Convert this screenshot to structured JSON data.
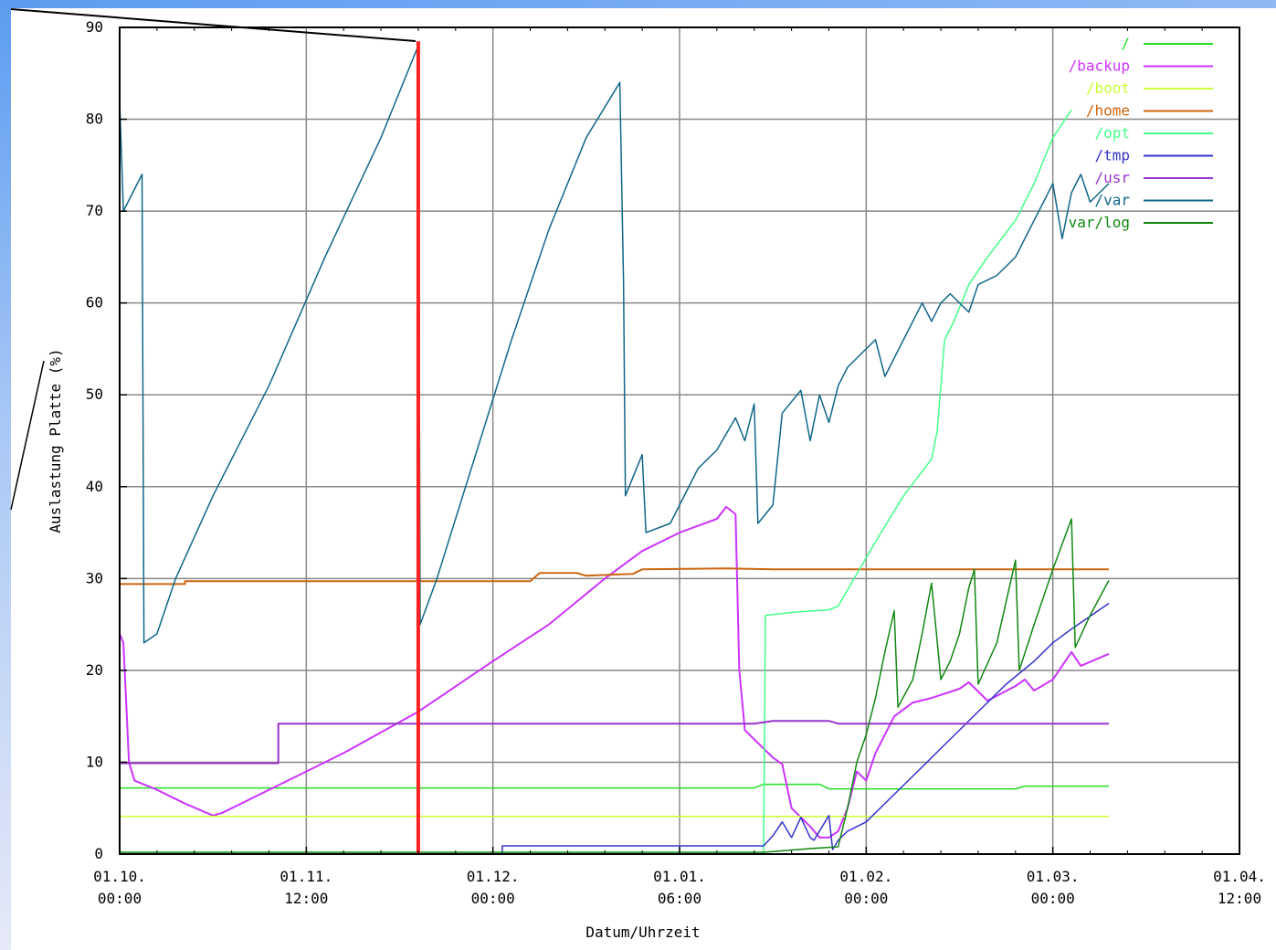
{
  "chart_data": {
    "type": "line",
    "title": "",
    "xlabel": "Datum/Uhrzeit",
    "ylabel": "Auslastung Platte (%)",
    "ylim": [
      0,
      90
    ],
    "xlim": [
      0,
      6
    ],
    "grid": true,
    "legend_position": "top-right",
    "x_tick_labels": [
      {
        "x": 0,
        "line1": "01.10.",
        "line2": "00:00"
      },
      {
        "x": 1,
        "line1": "01.11.",
        "line2": "12:00"
      },
      {
        "x": 2,
        "line1": "01.12.",
        "line2": "00:00"
      },
      {
        "x": 3,
        "line1": "01.01.",
        "line2": "06:00"
      },
      {
        "x": 4,
        "line1": "01.02.",
        "line2": "00:00"
      },
      {
        "x": 5,
        "line1": "01.03.",
        "line2": "00:00"
      },
      {
        "x": 6,
        "line1": "01.04.",
        "line2": "12:00"
      }
    ],
    "y_ticks": [
      0,
      10,
      20,
      30,
      40,
      50,
      60,
      70,
      80,
      90
    ],
    "series": [
      {
        "name": "/",
        "color": "#22dd22",
        "width": 1.5,
        "points": [
          [
            0,
            7.2
          ],
          [
            3.4,
            7.2
          ],
          [
            3.45,
            7.6
          ],
          [
            3.75,
            7.6
          ],
          [
            3.8,
            7.1
          ],
          [
            4.8,
            7.1
          ],
          [
            4.85,
            7.4
          ],
          [
            5.3,
            7.4
          ]
        ]
      },
      {
        "name": "/backup",
        "color": "#cc33ff",
        "width": 2,
        "points": [
          [
            0,
            24
          ],
          [
            0.02,
            23
          ],
          [
            0.05,
            10
          ],
          [
            0.08,
            8
          ],
          [
            0.2,
            7
          ],
          [
            0.35,
            5.5
          ],
          [
            0.5,
            4.2
          ],
          [
            0.55,
            4.5
          ],
          [
            0.9,
            8
          ],
          [
            1.2,
            11
          ],
          [
            1.6,
            15.5
          ],
          [
            2.0,
            21
          ],
          [
            2.3,
            25
          ],
          [
            2.6,
            30
          ],
          [
            2.8,
            33
          ],
          [
            3.0,
            35
          ],
          [
            3.2,
            36.5
          ],
          [
            3.25,
            37.8
          ],
          [
            3.3,
            37
          ],
          [
            3.32,
            20
          ],
          [
            3.35,
            13.5
          ],
          [
            3.5,
            10.5
          ],
          [
            3.55,
            9.8
          ],
          [
            3.6,
            5
          ],
          [
            3.7,
            3
          ],
          [
            3.75,
            1.8
          ],
          [
            3.8,
            1.8
          ],
          [
            3.85,
            2.5
          ],
          [
            3.9,
            5
          ],
          [
            3.95,
            9
          ],
          [
            4.0,
            8
          ],
          [
            4.05,
            11
          ],
          [
            4.15,
            15
          ],
          [
            4.25,
            16.5
          ],
          [
            4.35,
            17
          ],
          [
            4.5,
            18
          ],
          [
            4.55,
            18.7
          ],
          [
            4.65,
            16.7
          ],
          [
            4.8,
            18.3
          ],
          [
            4.85,
            19
          ],
          [
            4.9,
            17.8
          ],
          [
            5.0,
            19
          ],
          [
            5.1,
            22
          ],
          [
            5.15,
            20.5
          ],
          [
            5.3,
            21.8
          ]
        ]
      },
      {
        "name": "/boot",
        "color": "#ccff33",
        "width": 1.5,
        "points": [
          [
            0,
            4.1
          ],
          [
            5.3,
            4.1
          ]
        ]
      },
      {
        "name": "/home",
        "color": "#cc6611",
        "width": 2,
        "points": [
          [
            0,
            29.4
          ],
          [
            0.35,
            29.4
          ],
          [
            0.35,
            29.7
          ],
          [
            2.2,
            29.7
          ],
          [
            2.25,
            30.6
          ],
          [
            2.45,
            30.6
          ],
          [
            2.5,
            30.3
          ],
          [
            2.75,
            30.5
          ],
          [
            2.8,
            31
          ],
          [
            3.25,
            31.1
          ],
          [
            3.5,
            31
          ],
          [
            5.3,
            31
          ]
        ]
      },
      {
        "name": "/opt",
        "color": "#44ff88",
        "width": 1.5,
        "points": [
          [
            3.45,
            0
          ],
          [
            3.46,
            26
          ],
          [
            3.6,
            26.3
          ],
          [
            3.8,
            26.6
          ],
          [
            3.85,
            27
          ],
          [
            3.95,
            30.5
          ],
          [
            4.05,
            34
          ],
          [
            4.2,
            39
          ],
          [
            4.35,
            43
          ],
          [
            4.38,
            46
          ],
          [
            4.42,
            56
          ],
          [
            4.47,
            58
          ],
          [
            4.55,
            62
          ],
          [
            4.65,
            65
          ],
          [
            4.8,
            69
          ],
          [
            4.9,
            73
          ],
          [
            5.0,
            78
          ],
          [
            5.1,
            81
          ]
        ]
      },
      {
        "name": "/tmp",
        "color": "#3333cc",
        "width": 1.5,
        "points": [
          [
            0,
            0
          ],
          [
            2.05,
            0
          ],
          [
            2.05,
            0.9
          ],
          [
            3.45,
            0.9
          ],
          [
            3.5,
            2
          ],
          [
            3.55,
            3.5
          ],
          [
            3.6,
            1.8
          ],
          [
            3.65,
            4
          ],
          [
            3.7,
            1.8
          ],
          [
            3.72,
            1.5
          ],
          [
            3.8,
            4.2
          ],
          [
            3.82,
            0.5
          ],
          [
            3.85,
            1.5
          ],
          [
            3.9,
            2.5
          ],
          [
            4.0,
            3.5
          ],
          [
            4.2,
            7.5
          ],
          [
            4.4,
            11.5
          ],
          [
            4.6,
            15.5
          ],
          [
            4.75,
            18.5
          ],
          [
            4.9,
            21
          ],
          [
            5.0,
            23
          ],
          [
            5.1,
            24.5
          ],
          [
            5.3,
            27.3
          ]
        ]
      },
      {
        "name": "/usr",
        "color": "#9933cc",
        "width": 2,
        "points": [
          [
            0,
            9.9
          ],
          [
            0.85,
            9.9
          ],
          [
            0.85,
            14.2
          ],
          [
            3.4,
            14.2
          ],
          [
            3.5,
            14.5
          ],
          [
            3.8,
            14.5
          ],
          [
            3.85,
            14.2
          ],
          [
            5.3,
            14.2
          ]
        ]
      },
      {
        "name": "/var",
        "color": "#116688",
        "width": 1.5,
        "points": [
          [
            0,
            82
          ],
          [
            0.02,
            70
          ],
          [
            0.12,
            74
          ],
          [
            0.13,
            23
          ],
          [
            0.2,
            24
          ],
          [
            0.3,
            30
          ],
          [
            0.5,
            39
          ],
          [
            0.8,
            51
          ],
          [
            1.1,
            65
          ],
          [
            1.4,
            78
          ],
          [
            1.6,
            88
          ],
          [
            1.61,
            25
          ],
          [
            1.7,
            30
          ],
          [
            1.9,
            43
          ],
          [
            2.1,
            56
          ],
          [
            2.3,
            68
          ],
          [
            2.5,
            78
          ],
          [
            2.68,
            84
          ],
          [
            2.7,
            62
          ],
          [
            2.71,
            39
          ],
          [
            2.8,
            43.5
          ],
          [
            2.82,
            35
          ],
          [
            2.95,
            36
          ],
          [
            3.1,
            42
          ],
          [
            3.2,
            44
          ],
          [
            3.3,
            47.5
          ],
          [
            3.35,
            45
          ],
          [
            3.4,
            49
          ],
          [
            3.42,
            36
          ],
          [
            3.5,
            38
          ],
          [
            3.55,
            48
          ],
          [
            3.65,
            50.5
          ],
          [
            3.7,
            45
          ],
          [
            3.75,
            50
          ],
          [
            3.8,
            47
          ],
          [
            3.85,
            51
          ],
          [
            3.9,
            53
          ],
          [
            4.0,
            55
          ],
          [
            4.05,
            56
          ],
          [
            4.1,
            52
          ],
          [
            4.15,
            54
          ],
          [
            4.2,
            56
          ],
          [
            4.25,
            58
          ],
          [
            4.3,
            60
          ],
          [
            4.35,
            58
          ],
          [
            4.4,
            60
          ],
          [
            4.45,
            61
          ],
          [
            4.55,
            59
          ],
          [
            4.6,
            62
          ],
          [
            4.7,
            63
          ],
          [
            4.8,
            65
          ],
          [
            4.9,
            69
          ],
          [
            4.95,
            71
          ],
          [
            5.0,
            73
          ],
          [
            5.05,
            67
          ],
          [
            5.1,
            72
          ],
          [
            5.15,
            74
          ],
          [
            5.2,
            71
          ],
          [
            5.3,
            73
          ]
        ]
      },
      {
        "name": "var/log",
        "color": "#118811",
        "width": 1.5,
        "points": [
          [
            0,
            0.2
          ],
          [
            3.45,
            0.2
          ],
          [
            3.7,
            0.6
          ],
          [
            3.85,
            0.8
          ],
          [
            3.9,
            5
          ],
          [
            3.95,
            10
          ],
          [
            4.0,
            13
          ],
          [
            4.05,
            17
          ],
          [
            4.1,
            22
          ],
          [
            4.15,
            26.5
          ],
          [
            4.17,
            16
          ],
          [
            4.25,
            19
          ],
          [
            4.3,
            24
          ],
          [
            4.35,
            29.5
          ],
          [
            4.4,
            19
          ],
          [
            4.45,
            21
          ],
          [
            4.5,
            24
          ],
          [
            4.55,
            29
          ],
          [
            4.58,
            31
          ],
          [
            4.6,
            18.5
          ],
          [
            4.7,
            23
          ],
          [
            4.8,
            32
          ],
          [
            4.82,
            20
          ],
          [
            4.9,
            25
          ],
          [
            5.0,
            31
          ],
          [
            5.1,
            36.5
          ],
          [
            5.12,
            22.5
          ],
          [
            5.2,
            26
          ],
          [
            5.3,
            29.8
          ]
        ]
      }
    ]
  }
}
